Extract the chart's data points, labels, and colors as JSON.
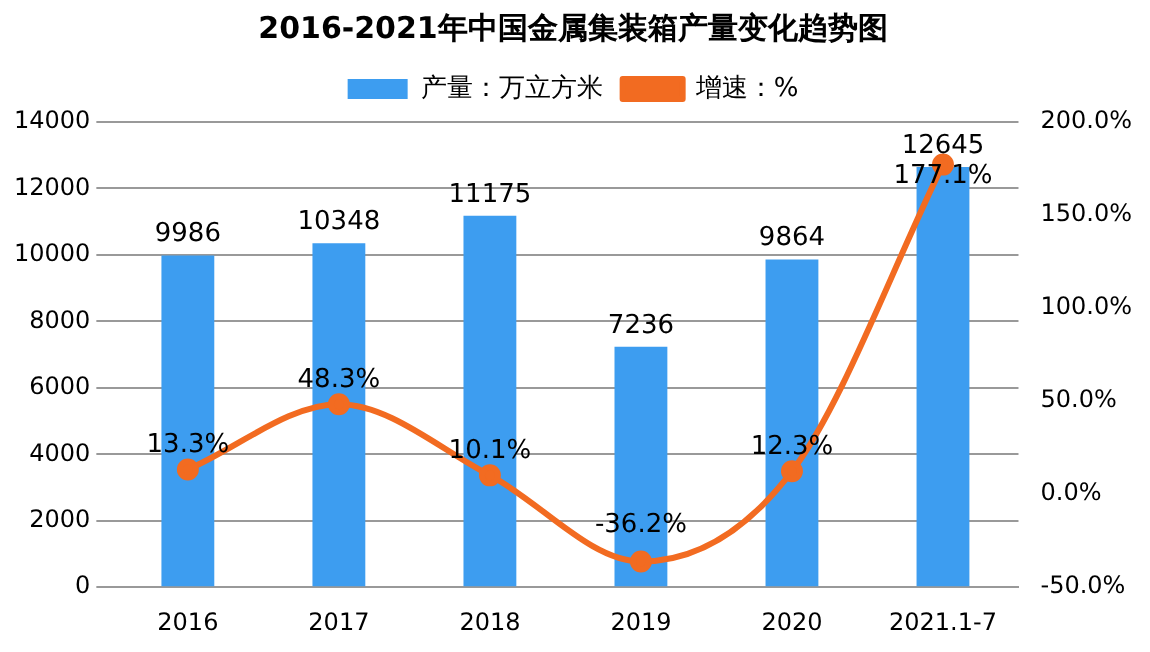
{
  "chart_data": {
    "type": "bar",
    "title": "2016-2021年中国金属集装箱产量变化趋势图",
    "categories": [
      "2016",
      "2017",
      "2018",
      "2019",
      "2020",
      "2021.1-7"
    ],
    "series": [
      {
        "name": "产量：万立方米",
        "color": "#3d9df0",
        "values": [
          9986,
          10348,
          11175,
          7236,
          9864,
          12645
        ],
        "value_labels": [
          "9986",
          "10348",
          "11175",
          "7236",
          "9864",
          "12645"
        ]
      },
      {
        "name": "增速：%",
        "type": "line",
        "axis": "y2",
        "color": "#f26b21",
        "values": [
          13.3,
          48.3,
          10.1,
          -36.2,
          12.3,
          177.1
        ],
        "value_labels": [
          "13.3%",
          "48.3%",
          "10.1%",
          "-36.2%",
          "12.3%",
          "177.1%"
        ]
      }
    ],
    "ylim": [
      0,
      14000
    ],
    "yticks": [
      0,
      2000,
      4000,
      6000,
      8000,
      10000,
      12000,
      14000
    ],
    "y2lim": [
      -50,
      200
    ],
    "y2ticks": [
      {
        "value": -50,
        "label": "-50.0%"
      },
      {
        "value": 0,
        "label": "0.0%"
      },
      {
        "value": 50,
        "label": "50.0%"
      },
      {
        "value": 100,
        "label": "100.0%"
      },
      {
        "value": 150,
        "label": "150.0%"
      },
      {
        "value": 200,
        "label": "200.0%"
      }
    ],
    "grid": "y",
    "legend": "top",
    "marker": "circle",
    "line_style": "solid"
  }
}
